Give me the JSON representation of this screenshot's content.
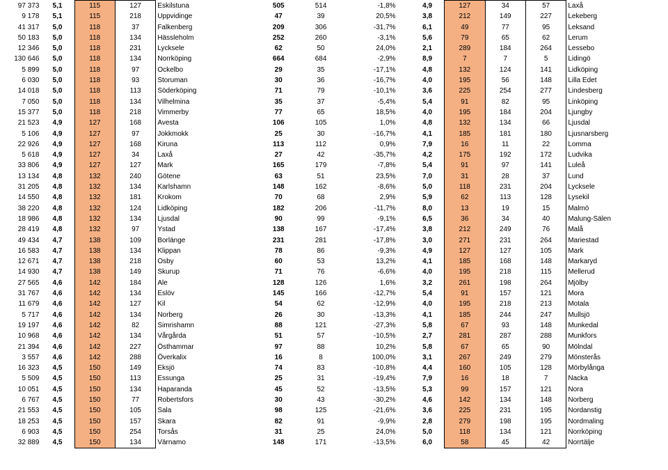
{
  "table": {
    "font_family": "Arial",
    "font_size_pt": 7.5,
    "background_color": "#ffffff",
    "highlight_color": "#f4b083",
    "border_color": "#000000",
    "rows": [
      {
        "a": "97 373",
        "b": "5,1",
        "c": "115",
        "d": "127",
        "e": "Eskilstuna",
        "f": "505",
        "g": "514",
        "h": "-1,8%",
        "i": "4,9",
        "j": "127",
        "k": "34",
        "l": "57",
        "m": "Laxå"
      },
      {
        "a": "9 178",
        "b": "5,1",
        "c": "115",
        "d": "218",
        "e": "Uppvidinge",
        "f": "47",
        "g": "39",
        "h": "20,5%",
        "i": "3,8",
        "j": "212",
        "k": "149",
        "l": "227",
        "m": "Lekeberg"
      },
      {
        "a": "41 317",
        "b": "5,0",
        "c": "118",
        "d": "37",
        "e": "Falkenberg",
        "f": "209",
        "g": "306",
        "h": "-31,7%",
        "i": "6,1",
        "j": "49",
        "k": "77",
        "l": "95",
        "m": "Leksand"
      },
      {
        "a": "50 183",
        "b": "5,0",
        "c": "118",
        "d": "134",
        "e": "Hässleholm",
        "f": "252",
        "g": "260",
        "h": "-3,1%",
        "i": "5,6",
        "j": "79",
        "k": "65",
        "l": "62",
        "m": "Lerum"
      },
      {
        "a": "12 346",
        "b": "5,0",
        "c": "118",
        "d": "231",
        "e": "Lycksele",
        "f": "62",
        "g": "50",
        "h": "24,0%",
        "i": "2,1",
        "j": "289",
        "k": "184",
        "l": "264",
        "m": "Lessebo"
      },
      {
        "a": "130 646",
        "b": "5,0",
        "c": "118",
        "d": "134",
        "e": "Norrköping",
        "f": "664",
        "g": "684",
        "h": "-2,9%",
        "i": "8,9",
        "j": "7",
        "k": "7",
        "l": "5",
        "m": "Lidingö"
      },
      {
        "a": "5 899",
        "b": "5,0",
        "c": "118",
        "d": "97",
        "e": "Ockelbo",
        "f": "29",
        "g": "35",
        "h": "-17,1%",
        "i": "4,8",
        "j": "132",
        "k": "124",
        "l": "141",
        "m": "Lidköping"
      },
      {
        "a": "6 030",
        "b": "5,0",
        "c": "118",
        "d": "93",
        "e": "Storuman",
        "f": "30",
        "g": "36",
        "h": "-16,7%",
        "i": "4,0",
        "j": "195",
        "k": "56",
        "l": "148",
        "m": "Lilla Edet"
      },
      {
        "a": "14 018",
        "b": "5,0",
        "c": "118",
        "d": "113",
        "e": "Söderköping",
        "f": "71",
        "g": "79",
        "h": "-10,1%",
        "i": "3,6",
        "j": "225",
        "k": "254",
        "l": "277",
        "m": "Lindesberg"
      },
      {
        "a": "7 050",
        "b": "5,0",
        "c": "118",
        "d": "134",
        "e": "Vilhelmina",
        "f": "35",
        "g": "37",
        "h": "-5,4%",
        "i": "5,4",
        "j": "91",
        "k": "82",
        "l": "95",
        "m": "Linköping"
      },
      {
        "a": "15 377",
        "b": "5,0",
        "c": "118",
        "d": "218",
        "e": "Vimmerby",
        "f": "77",
        "g": "65",
        "h": "18,5%",
        "i": "4,0",
        "j": "195",
        "k": "184",
        "l": "204",
        "m": "Ljungby"
      },
      {
        "a": "21 523",
        "b": "4,9",
        "c": "127",
        "d": "168",
        "e": "Avesta",
        "f": "106",
        "g": "105",
        "h": "1,0%",
        "i": "4,8",
        "j": "132",
        "k": "134",
        "l": "66",
        "m": "Ljusdal"
      },
      {
        "a": "5 106",
        "b": "4,9",
        "c": "127",
        "d": "97",
        "e": "Jokkmokk",
        "f": "25",
        "g": "30",
        "h": "-16,7%",
        "i": "4,1",
        "j": "185",
        "k": "181",
        "l": "180",
        "m": "Ljusnarsberg"
      },
      {
        "a": "22 926",
        "b": "4,9",
        "c": "127",
        "d": "168",
        "e": "Kiruna",
        "f": "113",
        "g": "112",
        "h": "0,9%",
        "i": "7,9",
        "j": "16",
        "k": "11",
        "l": "22",
        "m": "Lomma"
      },
      {
        "a": "5 618",
        "b": "4,9",
        "c": "127",
        "d": "34",
        "e": "Laxå",
        "f": "27",
        "g": "42",
        "h": "-35,7%",
        "i": "4,2",
        "j": "175",
        "k": "192",
        "l": "172",
        "m": "Ludvika"
      },
      {
        "a": "33 806",
        "b": "4,9",
        "c": "127",
        "d": "127",
        "e": "Mark",
        "f": "165",
        "g": "179",
        "h": "-7,8%",
        "i": "5,4",
        "j": "91",
        "k": "97",
        "l": "141",
        "m": "Luleå"
      },
      {
        "a": "13 134",
        "b": "4,8",
        "c": "132",
        "d": "240",
        "e": "Götene",
        "f": "63",
        "g": "51",
        "h": "23,5%",
        "i": "7,0",
        "j": "31",
        "k": "28",
        "l": "37",
        "m": "Lund"
      },
      {
        "a": "31 205",
        "b": "4,8",
        "c": "132",
        "d": "134",
        "e": "Karlshamn",
        "f": "148",
        "g": "162",
        "h": "-8,6%",
        "i": "5,0",
        "j": "118",
        "k": "231",
        "l": "204",
        "m": "Lycksele"
      },
      {
        "a": "14 550",
        "b": "4,8",
        "c": "132",
        "d": "181",
        "e": "Krokom",
        "f": "70",
        "g": "68",
        "h": "2,9%",
        "i": "5,9",
        "j": "62",
        "k": "113",
        "l": "128",
        "m": "Lysekil"
      },
      {
        "a": "38 220",
        "b": "4,8",
        "c": "132",
        "d": "124",
        "e": "Lidköping",
        "f": "182",
        "g": "206",
        "h": "-11,7%",
        "i": "8,0",
        "j": "13",
        "k": "19",
        "l": "15",
        "m": "Malmö"
      },
      {
        "a": "18 986",
        "b": "4,8",
        "c": "132",
        "d": "134",
        "e": "Ljusdal",
        "f": "90",
        "g": "99",
        "h": "-9,1%",
        "i": "6,5",
        "j": "36",
        "k": "34",
        "l": "40",
        "m": "Malung-Sälen"
      },
      {
        "a": "28 419",
        "b": "4,8",
        "c": "132",
        "d": "97",
        "e": "Ystad",
        "f": "138",
        "g": "167",
        "h": "-17,4%",
        "i": "3,8",
        "j": "212",
        "k": "249",
        "l": "76",
        "m": "Malå"
      },
      {
        "a": "49 434",
        "b": "4,7",
        "c": "138",
        "d": "109",
        "e": "Borlänge",
        "f": "231",
        "g": "281",
        "h": "-17,8%",
        "i": "3,0",
        "j": "271",
        "k": "231",
        "l": "264",
        "m": "Mariestad"
      },
      {
        "a": "16 583",
        "b": "4,7",
        "c": "138",
        "d": "134",
        "e": "Klippan",
        "f": "78",
        "g": "86",
        "h": "-9,3%",
        "i": "4,9",
        "j": "127",
        "k": "127",
        "l": "105",
        "m": "Mark"
      },
      {
        "a": "12 671",
        "b": "4,7",
        "c": "138",
        "d": "218",
        "e": "Osby",
        "f": "60",
        "g": "53",
        "h": "13,2%",
        "i": "4,1",
        "j": "185",
        "k": "168",
        "l": "148",
        "m": "Markaryd"
      },
      {
        "a": "14 930",
        "b": "4,7",
        "c": "138",
        "d": "149",
        "e": "Skurup",
        "f": "71",
        "g": "76",
        "h": "-6,6%",
        "i": "4,0",
        "j": "195",
        "k": "218",
        "l": "115",
        "m": "Mellerud"
      },
      {
        "a": "27 565",
        "b": "4,6",
        "c": "142",
        "d": "184",
        "e": "Ale",
        "f": "128",
        "g": "126",
        "h": "1,6%",
        "i": "3,2",
        "j": "261",
        "k": "198",
        "l": "264",
        "m": "Mjölby"
      },
      {
        "a": "31 767",
        "b": "4,6",
        "c": "142",
        "d": "134",
        "e": "Eslöv",
        "f": "145",
        "g": "166",
        "h": "-12,7%",
        "i": "5,4",
        "j": "91",
        "k": "157",
        "l": "121",
        "m": "Mora"
      },
      {
        "a": "11 679",
        "b": "4,6",
        "c": "142",
        "d": "127",
        "e": "Kil",
        "f": "54",
        "g": "62",
        "h": "-12,9%",
        "i": "4,0",
        "j": "195",
        "k": "218",
        "l": "213",
        "m": "Motala"
      },
      {
        "a": "5 717",
        "b": "4,6",
        "c": "142",
        "d": "134",
        "e": "Norberg",
        "f": "26",
        "g": "30",
        "h": "-13,3%",
        "i": "4,1",
        "j": "185",
        "k": "244",
        "l": "247",
        "m": "Mullsjö"
      },
      {
        "a": "19 197",
        "b": "4,6",
        "c": "142",
        "d": "82",
        "e": "Simrishamn",
        "f": "88",
        "g": "121",
        "h": "-27,3%",
        "i": "5,8",
        "j": "67",
        "k": "93",
        "l": "148",
        "m": "Munkedal"
      },
      {
        "a": "10 968",
        "b": "4,6",
        "c": "142",
        "d": "134",
        "e": "Vårgårda",
        "f": "51",
        "g": "57",
        "h": "-10,5%",
        "i": "2,7",
        "j": "281",
        "k": "287",
        "l": "288",
        "m": "Munkfors"
      },
      {
        "a": "21 394",
        "b": "4,6",
        "c": "142",
        "d": "227",
        "e": "Östhammar",
        "f": "97",
        "g": "88",
        "h": "10,2%",
        "i": "5,8",
        "j": "67",
        "k": "65",
        "l": "90",
        "m": "Mölndal"
      },
      {
        "a": "3 557",
        "b": "4,6",
        "c": "142",
        "d": "288",
        "e": "Överkalix",
        "f": "16",
        "g": "8",
        "h": "100,0%",
        "i": "3,1",
        "j": "267",
        "k": "249",
        "l": "279",
        "m": "Mönsterås"
      },
      {
        "a": "16 323",
        "b": "4,5",
        "c": "150",
        "d": "149",
        "e": "Eksjö",
        "f": "74",
        "g": "83",
        "h": "-10,8%",
        "i": "4,4",
        "j": "160",
        "k": "105",
        "l": "128",
        "m": "Mörbylånga"
      },
      {
        "a": "5 509",
        "b": "4,5",
        "c": "150",
        "d": "113",
        "e": "Essunga",
        "f": "25",
        "g": "31",
        "h": "-19,4%",
        "i": "7,9",
        "j": "16",
        "k": "18",
        "l": "7",
        "m": "Nacka"
      },
      {
        "a": "10 051",
        "b": "4,5",
        "c": "150",
        "d": "134",
        "e": "Haparanda",
        "f": "45",
        "g": "52",
        "h": "-13,5%",
        "i": "5,3",
        "j": "99",
        "k": "157",
        "l": "121",
        "m": "Nora"
      },
      {
        "a": "6 767",
        "b": "4,5",
        "c": "150",
        "d": "77",
        "e": "Robertsfors",
        "f": "30",
        "g": "43",
        "h": "-30,2%",
        "i": "4,6",
        "j": "142",
        "k": "134",
        "l": "148",
        "m": "Norberg"
      },
      {
        "a": "21 553",
        "b": "4,5",
        "c": "150",
        "d": "105",
        "e": "Sala",
        "f": "98",
        "g": "125",
        "h": "-21,6%",
        "i": "3,6",
        "j": "225",
        "k": "231",
        "l": "195",
        "m": "Nordanstig"
      },
      {
        "a": "18 253",
        "b": "4,5",
        "c": "150",
        "d": "157",
        "e": "Skara",
        "f": "82",
        "g": "91",
        "h": "-9,9%",
        "i": "2,8",
        "j": "279",
        "k": "198",
        "l": "195",
        "m": "Nordmaling"
      },
      {
        "a": "6 903",
        "b": "4,5",
        "c": "150",
        "d": "254",
        "e": "Torsås",
        "f": "31",
        "g": "25",
        "h": "24,0%",
        "i": "5,0",
        "j": "118",
        "k": "134",
        "l": "121",
        "m": "Norrköping"
      },
      {
        "a": "32 889",
        "b": "4,5",
        "c": "150",
        "d": "134",
        "e": "Värnamo",
        "f": "148",
        "g": "171",
        "h": "-13,5%",
        "i": "6,0",
        "j": "58",
        "k": "45",
        "l": "42",
        "m": "Norrtälje"
      }
    ]
  }
}
